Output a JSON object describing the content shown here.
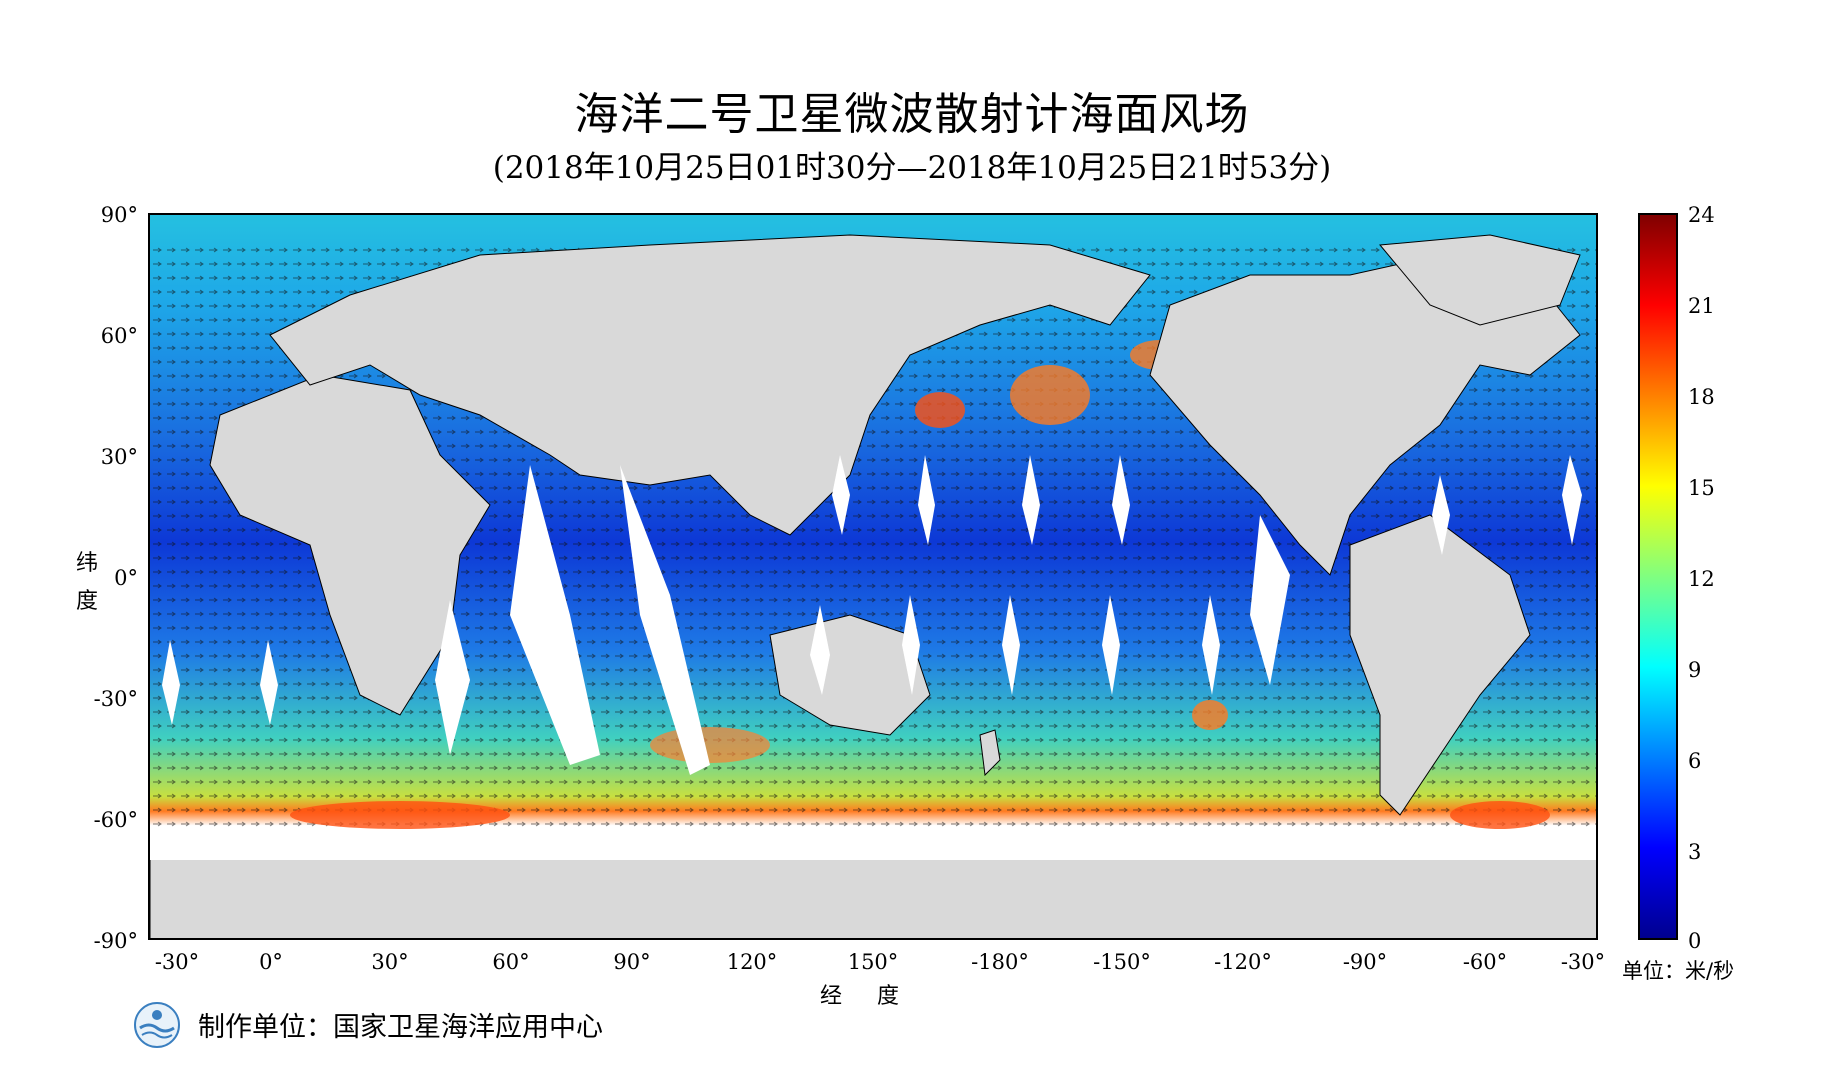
{
  "title": "海洋二号卫星微波散射计海面风场",
  "subtitle": "(2018年10月25日01时30分—2018年10月25日21时53分)",
  "axes": {
    "y_title": [
      "纬",
      "度"
    ],
    "x_title": "经 度",
    "lat_ticks": [
      "90°",
      "60°",
      "30°",
      "0°",
      "-30°",
      "-60°",
      "-90°"
    ],
    "lon_ticks": [
      "-30°",
      "0°",
      "30°",
      "60°",
      "90°",
      "120°",
      "150°",
      "-180°",
      "-150°",
      "-120°",
      "-90°",
      "-60°",
      "-30°"
    ]
  },
  "colorbar": {
    "ticks": [
      "24",
      "21",
      "18",
      "15",
      "12",
      "9",
      "6",
      "3",
      "0"
    ],
    "unit": "单位：米/秒",
    "colors": [
      "#00008f",
      "#0000ff",
      "#0080ff",
      "#00ffff",
      "#80ff80",
      "#ffff00",
      "#ff8000",
      "#ff0000",
      "#800000"
    ],
    "range": [
      0,
      24
    ]
  },
  "producer": "制作单位：国家卫星海洋应用中心",
  "colors": {
    "land": "#d9d9d9",
    "swath_gap": "#ffffff",
    "ocean_base": "#1a6fe0"
  }
}
